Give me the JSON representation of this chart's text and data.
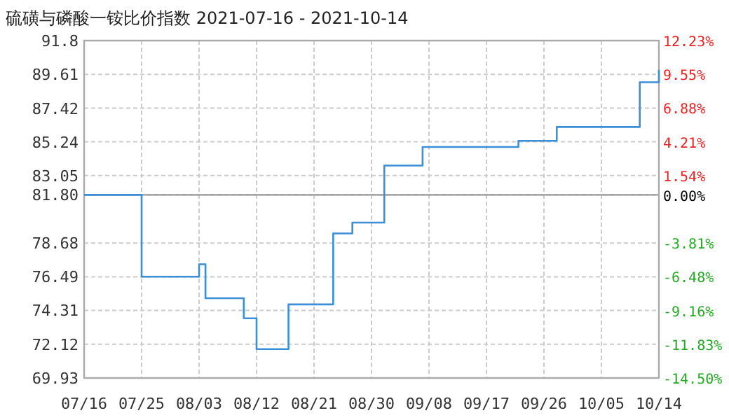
{
  "chart_data": {
    "type": "step",
    "title": "硫磺与磷酸一铵比价指数 2021-07-16 - 2021-10-14",
    "x": [
      "2021-07-16",
      "2021-07-24",
      "2021-07-25",
      "2021-08-02",
      "2021-08-03",
      "2021-08-04",
      "2021-08-09",
      "2021-08-10",
      "2021-08-11",
      "2021-08-12",
      "2021-08-16",
      "2021-08-17",
      "2021-08-23",
      "2021-08-24",
      "2021-08-26",
      "2021-08-27",
      "2021-08-30",
      "2021-09-01",
      "2021-09-06",
      "2021-09-07",
      "2021-09-21",
      "2021-09-22",
      "2021-09-27",
      "2021-09-28",
      "2021-10-10",
      "2021-10-11",
      "2021-10-12",
      "2021-10-14"
    ],
    "series": [
      {
        "color": "#3a8fd6",
        "values": [
          81.8,
          81.8,
          76.5,
          76.5,
          77.3,
          75.1,
          75.1,
          73.8,
          73.8,
          71.8,
          71.8,
          74.7,
          74.7,
          79.3,
          79.3,
          80.0,
          80.0,
          83.7,
          83.7,
          84.9,
          84.9,
          85.3,
          85.3,
          86.2,
          86.2,
          89.1,
          89.1,
          89.9
        ]
      }
    ],
    "xlim": [
      "2021-07-16",
      "2021-10-14"
    ],
    "xticks": [
      {
        "value": "2021-07-16",
        "label": "07/16"
      },
      {
        "value": "2021-07-25",
        "label": "07/25"
      },
      {
        "value": "2021-08-03",
        "label": "08/03"
      },
      {
        "value": "2021-08-12",
        "label": "08/12"
      },
      {
        "value": "2021-08-21",
        "label": "08/21"
      },
      {
        "value": "2021-08-30",
        "label": "08/30"
      },
      {
        "value": "2021-09-08",
        "label": "09/08"
      },
      {
        "value": "2021-09-17",
        "label": "09/17"
      },
      {
        "value": "2021-09-26",
        "label": "09/26"
      },
      {
        "value": "2021-10-05",
        "label": "10/05"
      },
      {
        "value": "2021-10-14",
        "label": "10/14"
      }
    ],
    "ylim": [
      69.93,
      91.8
    ],
    "yticks": [
      69.93,
      72.12,
      74.31,
      76.49,
      78.68,
      {
        "value": 81.8,
        "label": "81.80"
      },
      83.05,
      85.24,
      87.42,
      89.61,
      91.8
    ],
    "y2lim": [
      -14.5,
      12.23
    ],
    "y2ticks": [
      {
        "value": -14.5,
        "label": "-14.50%"
      },
      {
        "value": -11.83,
        "label": "-11.83%"
      },
      {
        "value": -9.16,
        "label": "-9.16%"
      },
      {
        "value": -6.48,
        "label": "-6.48%"
      },
      {
        "value": -3.81,
        "label": "-3.81%"
      },
      {
        "value": 0,
        "label": "0.00%"
      },
      {
        "value": 1.54,
        "label": "1.54%"
      },
      {
        "value": 4.21,
        "label": "4.21%"
      },
      {
        "value": 6.88,
        "label": "6.88%"
      },
      {
        "value": 9.55,
        "label": "9.55%"
      },
      {
        "value": 12.23,
        "label": "12.23%"
      }
    ],
    "ref_lines": [
      {
        "axis": "y",
        "value": 81.8,
        "color": "#999999"
      }
    ],
    "grid": true,
    "marker": "none",
    "line_style": "solid"
  }
}
